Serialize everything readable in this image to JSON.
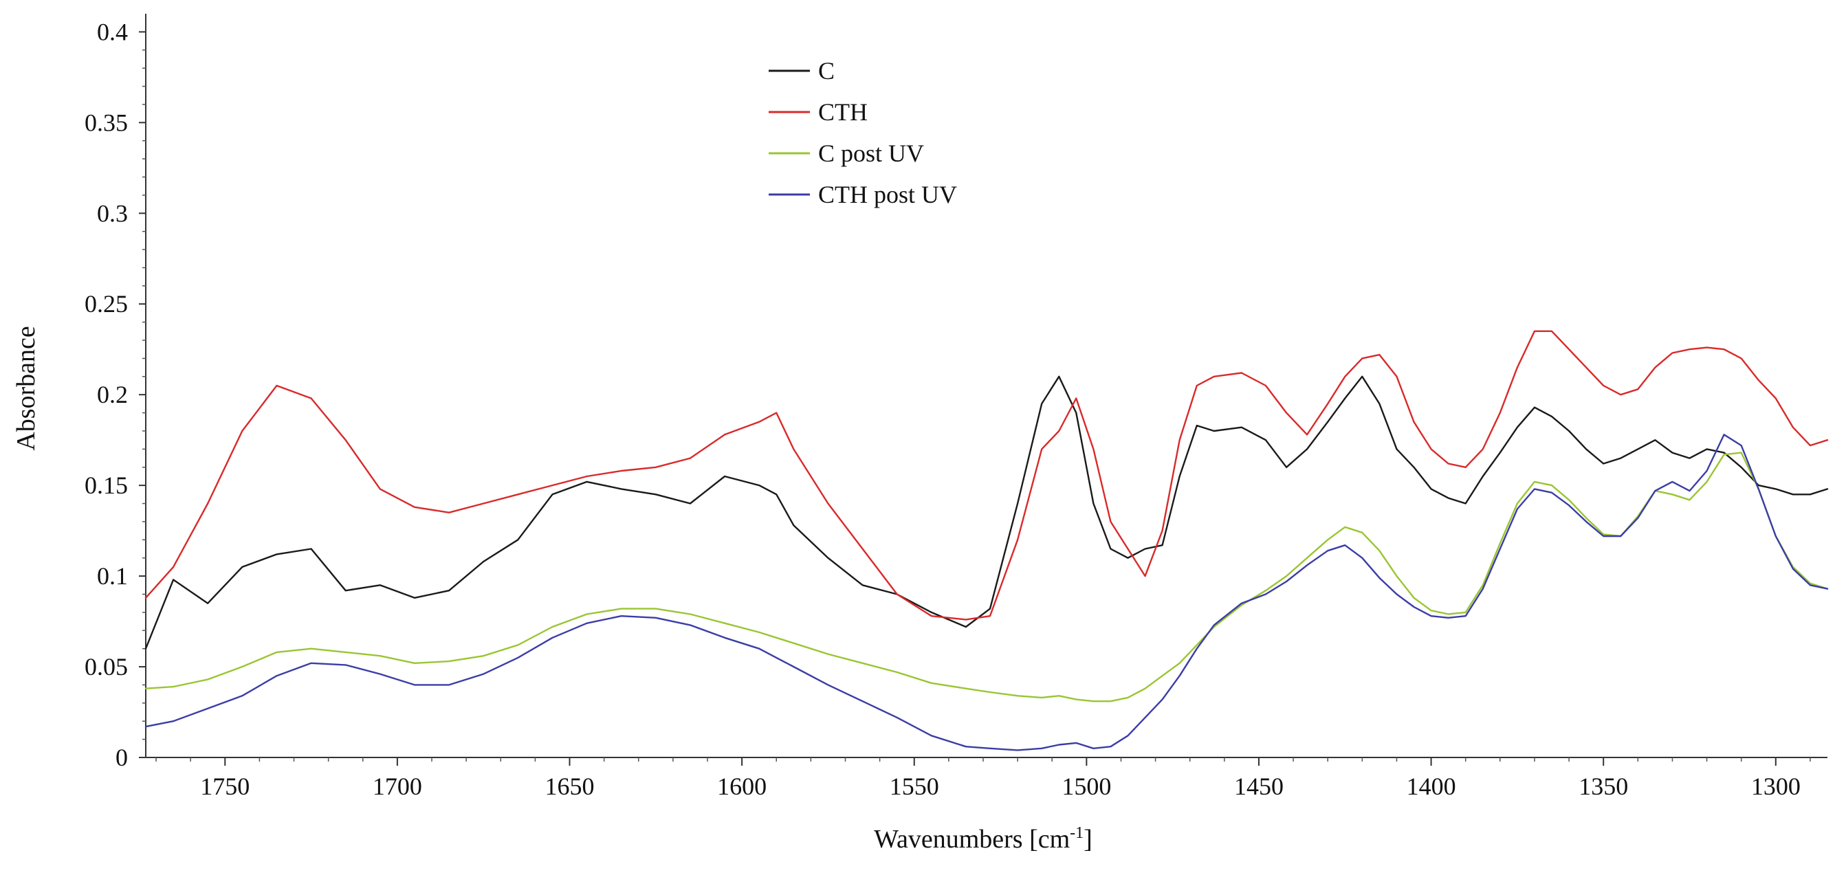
{
  "chart_data": {
    "type": "line",
    "title": "",
    "xlabel": "Wavenumbers [cm",
    "xlabel_sup": "-1",
    "xlabel_end": "]",
    "ylabel": "Absorbance",
    "xlim": [
      1773,
      1285
    ],
    "ylim": [
      0,
      0.41
    ],
    "x_reversed": true,
    "grid": false,
    "legend_position": "top-center",
    "xticks": [
      1750,
      1700,
      1650,
      1600,
      1550,
      1500,
      1450,
      1400,
      1350,
      1300
    ],
    "xtick_labels": [
      "1750",
      "1700",
      "1650",
      "1600",
      "1550",
      "1500",
      "1450",
      "1400",
      "1350",
      "1300"
    ],
    "yticks": [
      0,
      0.05,
      0.1,
      0.15,
      0.2,
      0.25,
      0.3,
      0.35,
      0.4
    ],
    "ytick_labels": [
      "0",
      "0.05",
      "0.1",
      "0.15",
      "0.2",
      "0.25",
      "0.3",
      "0.35",
      "0.4"
    ],
    "x": [
      1773,
      1765,
      1755,
      1745,
      1735,
      1725,
      1715,
      1705,
      1695,
      1685,
      1675,
      1665,
      1655,
      1645,
      1635,
      1625,
      1615,
      1605,
      1595,
      1590,
      1585,
      1575,
      1565,
      1555,
      1545,
      1535,
      1528,
      1520,
      1513,
      1508,
      1503,
      1498,
      1493,
      1488,
      1483,
      1478,
      1473,
      1468,
      1463,
      1455,
      1448,
      1442,
      1436,
      1430,
      1425,
      1420,
      1415,
      1410,
      1405,
      1400,
      1395,
      1390,
      1385,
      1380,
      1375,
      1370,
      1365,
      1360,
      1355,
      1350,
      1345,
      1340,
      1335,
      1330,
      1325,
      1320,
      1315,
      1310,
      1305,
      1300,
      1295,
      1290,
      1285
    ],
    "series": [
      {
        "name": "C",
        "color": "#1a1a1a",
        "values": [
          0.06,
          0.098,
          0.085,
          0.105,
          0.112,
          0.115,
          0.092,
          0.095,
          0.088,
          0.092,
          0.108,
          0.12,
          0.145,
          0.152,
          0.148,
          0.145,
          0.14,
          0.155,
          0.15,
          0.145,
          0.128,
          0.11,
          0.095,
          0.09,
          0.08,
          0.072,
          0.082,
          0.14,
          0.195,
          0.21,
          0.19,
          0.14,
          0.115,
          0.11,
          0.115,
          0.117,
          0.155,
          0.183,
          0.18,
          0.182,
          0.175,
          0.16,
          0.17,
          0.185,
          0.198,
          0.21,
          0.195,
          0.17,
          0.16,
          0.148,
          0.143,
          0.14,
          0.155,
          0.168,
          0.182,
          0.193,
          0.188,
          0.18,
          0.17,
          0.162,
          0.165,
          0.17,
          0.175,
          0.168,
          0.165,
          0.17,
          0.168,
          0.16,
          0.15,
          0.148,
          0.145,
          0.145,
          0.148
        ]
      },
      {
        "name": "CTH",
        "color": "#d92a2a",
        "values": [
          0.088,
          0.105,
          0.14,
          0.18,
          0.205,
          0.198,
          0.175,
          0.148,
          0.138,
          0.135,
          0.14,
          0.145,
          0.15,
          0.155,
          0.158,
          0.16,
          0.165,
          0.178,
          0.185,
          0.19,
          0.17,
          0.14,
          0.115,
          0.09,
          0.078,
          0.076,
          0.078,
          0.12,
          0.17,
          0.18,
          0.198,
          0.17,
          0.13,
          0.115,
          0.1,
          0.125,
          0.175,
          0.205,
          0.21,
          0.212,
          0.205,
          0.19,
          0.178,
          0.195,
          0.21,
          0.22,
          0.222,
          0.21,
          0.185,
          0.17,
          0.162,
          0.16,
          0.17,
          0.19,
          0.215,
          0.235,
          0.235,
          0.225,
          0.215,
          0.205,
          0.2,
          0.203,
          0.215,
          0.223,
          0.225,
          0.226,
          0.225,
          0.22,
          0.208,
          0.198,
          0.182,
          0.172,
          0.175
        ]
      },
      {
        "name": "C post UV",
        "color": "#9ac533",
        "values": [
          0.038,
          0.039,
          0.043,
          0.05,
          0.058,
          0.06,
          0.058,
          0.056,
          0.052,
          0.053,
          0.056,
          0.062,
          0.072,
          0.079,
          0.082,
          0.082,
          0.079,
          0.074,
          0.069,
          0.066,
          0.063,
          0.057,
          0.052,
          0.047,
          0.041,
          0.038,
          0.036,
          0.034,
          0.033,
          0.034,
          0.032,
          0.031,
          0.031,
          0.033,
          0.038,
          0.045,
          0.052,
          0.062,
          0.072,
          0.084,
          0.092,
          0.1,
          0.11,
          0.12,
          0.127,
          0.124,
          0.114,
          0.1,
          0.088,
          0.081,
          0.079,
          0.08,
          0.095,
          0.118,
          0.14,
          0.152,
          0.15,
          0.142,
          0.132,
          0.123,
          0.122,
          0.133,
          0.147,
          0.145,
          0.142,
          0.152,
          0.167,
          0.168,
          0.148,
          0.122,
          0.105,
          0.096,
          0.093
        ]
      },
      {
        "name": "CTH post UV",
        "color": "#3b3da6",
        "values": [
          0.017,
          0.02,
          0.027,
          0.034,
          0.045,
          0.052,
          0.051,
          0.046,
          0.04,
          0.04,
          0.046,
          0.055,
          0.066,
          0.074,
          0.078,
          0.077,
          0.073,
          0.066,
          0.06,
          0.055,
          0.05,
          0.04,
          0.031,
          0.022,
          0.012,
          0.006,
          0.005,
          0.004,
          0.005,
          0.007,
          0.008,
          0.005,
          0.006,
          0.012,
          0.022,
          0.032,
          0.045,
          0.06,
          0.073,
          0.085,
          0.09,
          0.097,
          0.106,
          0.114,
          0.117,
          0.11,
          0.099,
          0.09,
          0.083,
          0.078,
          0.077,
          0.078,
          0.093,
          0.115,
          0.137,
          0.148,
          0.146,
          0.139,
          0.13,
          0.122,
          0.122,
          0.132,
          0.147,
          0.152,
          0.147,
          0.158,
          0.178,
          0.172,
          0.148,
          0.122,
          0.104,
          0.095,
          0.093
        ]
      }
    ]
  }
}
